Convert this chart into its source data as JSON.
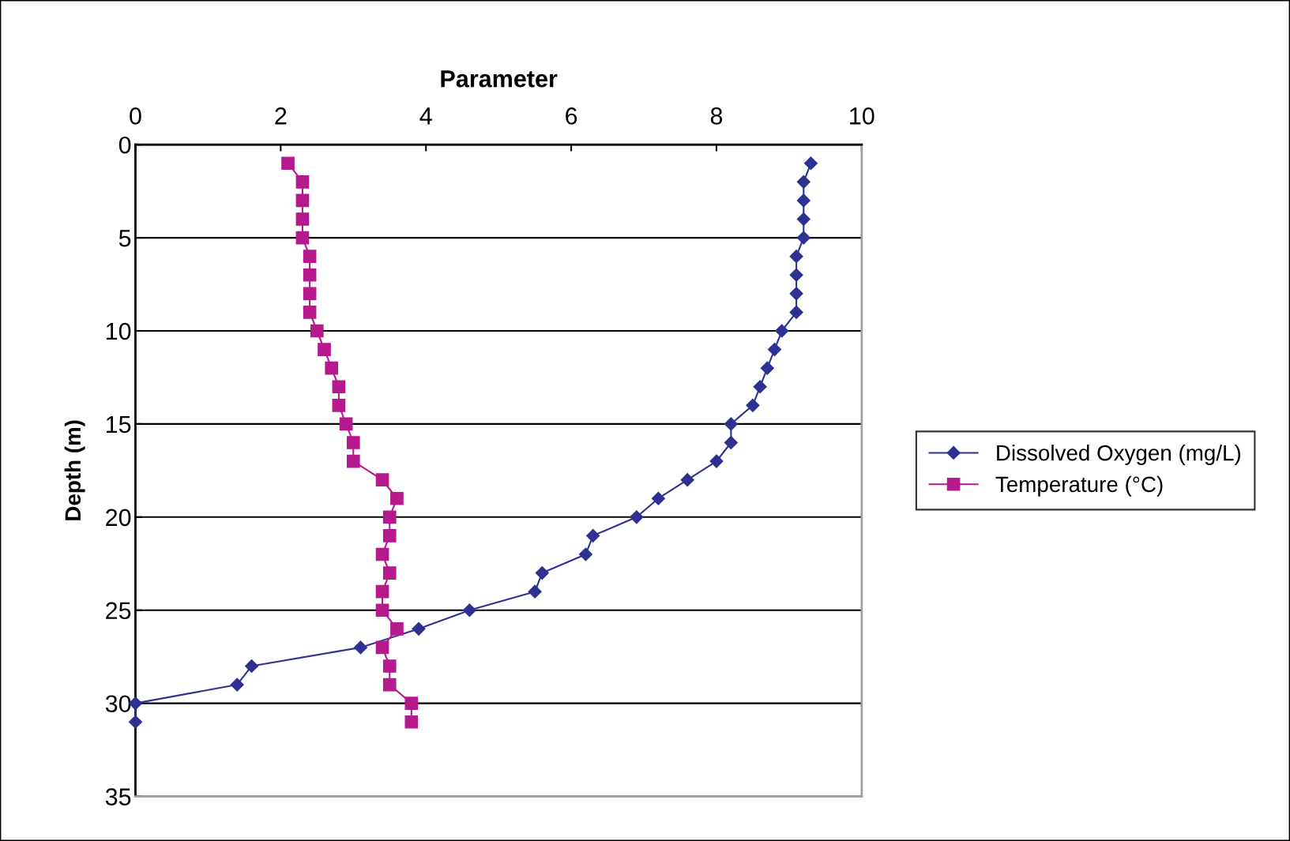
{
  "chart_data": {
    "type": "line",
    "xlabel": "Parameter",
    "ylabel": "Depth (m)",
    "xlim": [
      0,
      10
    ],
    "xticks": [
      0,
      2,
      4,
      6,
      8,
      10
    ],
    "ylim": [
      35,
      0
    ],
    "yticks": [
      0,
      5,
      10,
      15,
      20,
      25,
      30,
      35
    ],
    "grid": "y",
    "legend": "right",
    "line_style": "solid",
    "series": [
      {
        "name": "Dissolved Oxygen (mg/L)",
        "color": "#2e3192",
        "marker": "diamond",
        "x": [
          9.3,
          9.2,
          9.2,
          9.2,
          9.2,
          9.1,
          9.1,
          9.1,
          9.1,
          8.9,
          8.8,
          8.7,
          8.6,
          8.5,
          8.2,
          8.2,
          8.0,
          7.6,
          7.2,
          6.9,
          6.3,
          6.2,
          5.6,
          5.5,
          4.6,
          3.9,
          3.1,
          1.6,
          1.4,
          0,
          0
        ],
        "values": [
          1,
          2,
          3,
          4,
          5,
          6,
          7,
          8,
          9,
          10,
          11,
          12,
          13,
          14,
          15,
          16,
          17,
          18,
          19,
          20,
          21,
          22,
          23,
          24,
          25,
          26,
          27,
          28,
          29,
          30,
          31
        ]
      },
      {
        "name": "Temperature (°C)",
        "color": "#b5198d",
        "marker": "square",
        "x": [
          2.1,
          2.3,
          2.3,
          2.3,
          2.3,
          2.4,
          2.4,
          2.4,
          2.4,
          2.5,
          2.6,
          2.7,
          2.8,
          2.8,
          2.9,
          3.0,
          3.0,
          3.4,
          3.6,
          3.5,
          3.5,
          3.4,
          3.5,
          3.4,
          3.4,
          3.6,
          3.4,
          3.5,
          3.5,
          3.8,
          3.8
        ],
        "values": [
          1,
          2,
          3,
          4,
          5,
          6,
          7,
          8,
          9,
          10,
          11,
          12,
          13,
          14,
          15,
          16,
          17,
          18,
          19,
          20,
          21,
          22,
          23,
          24,
          25,
          26,
          27,
          28,
          29,
          30,
          31
        ]
      }
    ]
  }
}
